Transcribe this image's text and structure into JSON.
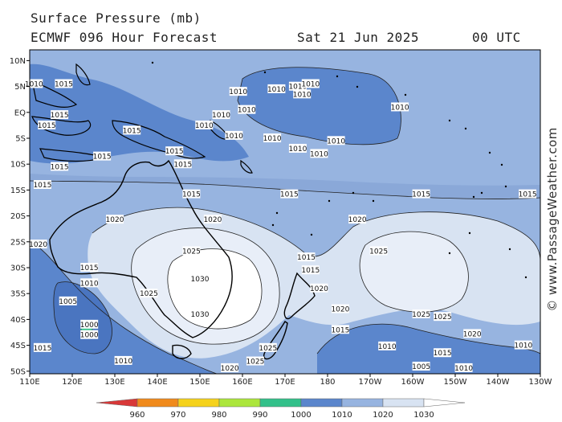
{
  "header": {
    "title": "Surface Pressure (mb)",
    "model": "ECMWF 096 Hour Forecast",
    "date": "Sat 21 Jun 2025",
    "time": "00 UTC"
  },
  "watermark": "© www.PassageWeather.com",
  "axes": {
    "lat_labels": [
      "10N",
      "5N",
      "EQ",
      "5S",
      "10S",
      "15S",
      "20S",
      "25S",
      "30S",
      "35S",
      "40S",
      "45S",
      "50S"
    ],
    "lon_labels": [
      "110E",
      "120E",
      "130E",
      "140E",
      "150E",
      "160E",
      "170E",
      "180",
      "170W",
      "160W",
      "150W",
      "140W",
      "130W"
    ]
  },
  "legend": {
    "values": [
      "960",
      "970",
      "980",
      "990",
      "1000",
      "1010",
      "1020",
      "1030"
    ],
    "colors": [
      "#d83838",
      "#f08a1c",
      "#f5d21c",
      "#ace63c",
      "#33c08a",
      "#5b86cc",
      "#97b4e0",
      "#d8e3f2",
      "#ffffff"
    ]
  },
  "isobar_labels": [
    {
      "text": "1015",
      "lat": -15.3,
      "lon": 148
    },
    {
      "text": "1015",
      "lat": -15.3,
      "lon": 171
    },
    {
      "text": "1015",
      "lat": -15.3,
      "lon": -158
    },
    {
      "text": "1015",
      "lat": -15.3,
      "lon": -133
    },
    {
      "text": "1015",
      "lat": -13.5,
      "lon": 113
    },
    {
      "text": "1020",
      "lat": -20.2,
      "lon": 130
    },
    {
      "text": "1020",
      "lat": -20.2,
      "lon": 153
    },
    {
      "text": "1020",
      "lat": -20.2,
      "lon": -173
    },
    {
      "text": "1020",
      "lat": -25,
      "lon": 112
    },
    {
      "text": "1025",
      "lat": -26.3,
      "lon": 148
    },
    {
      "text": "1025",
      "lat": -26.3,
      "lon": -168
    },
    {
      "text": "1030",
      "lat": -31.7,
      "lon": 150
    },
    {
      "text": "1030",
      "lat": -38.5,
      "lon": 150
    },
    {
      "text": "1025",
      "lat": -34.5,
      "lon": 138
    },
    {
      "text": "1015",
      "lat": -29.5,
      "lon": 124
    },
    {
      "text": "1010",
      "lat": -32.5,
      "lon": 124
    },
    {
      "text": "1005",
      "lat": -36,
      "lon": 119
    },
    {
      "text": "1000",
      "lat": -40.5,
      "lon": 124
    },
    {
      "text": "1000",
      "lat": -42.5,
      "lon": 124
    },
    {
      "text": "1015",
      "lat": -45,
      "lon": 113
    },
    {
      "text": "1010",
      "lat": -47.5,
      "lon": 132
    },
    {
      "text": "1020",
      "lat": -48.9,
      "lon": 157
    },
    {
      "text": "1025",
      "lat": -47.6,
      "lon": 163
    },
    {
      "text": "1025",
      "lat": -45,
      "lon": 166
    },
    {
      "text": "1020",
      "lat": -37.5,
      "lon": -177
    },
    {
      "text": "1015",
      "lat": -41.5,
      "lon": -177
    },
    {
      "text": "1010",
      "lat": -44.7,
      "lon": -166
    },
    {
      "text": "1005",
      "lat": -48.6,
      "lon": -158
    },
    {
      "text": "1010",
      "lat": -48.9,
      "lon": -148
    },
    {
      "text": "1015",
      "lat": -46,
      "lon": -153
    },
    {
      "text": "1020",
      "lat": -42.3,
      "lon": -146
    },
    {
      "text": "1025",
      "lat": -38.5,
      "lon": -158
    },
    {
      "text": "1025",
      "lat": -39,
      "lon": -153
    },
    {
      "text": "1020",
      "lat": -33.5,
      "lon": 178
    },
    {
      "text": "1015",
      "lat": -27.5,
      "lon": 175
    },
    {
      "text": "1015",
      "lat": -30,
      "lon": 176
    },
    {
      "text": "1010",
      "lat": -44.5,
      "lon": -134
    },
    {
      "text": "1010",
      "lat": -4.5,
      "lon": 167
    },
    {
      "text": "1010",
      "lat": -6.5,
      "lon": 173
    },
    {
      "text": "1010",
      "lat": -7.5,
      "lon": 178
    },
    {
      "text": "1010",
      "lat": -5,
      "lon": -178
    },
    {
      "text": "1010",
      "lat": 1.5,
      "lon": -163
    },
    {
      "text": "1010",
      "lat": 1,
      "lon": 161
    },
    {
      "text": "1010",
      "lat": 4.5,
      "lon": 159
    },
    {
      "text": "1010",
      "lat": 5,
      "lon": 168
    },
    {
      "text": "1010",
      "lat": 5.5,
      "lon": 173
    },
    {
      "text": "1010",
      "lat": 4,
      "lon": 174
    },
    {
      "text": "1010",
      "lat": 6,
      "lon": 176
    },
    {
      "text": "1010",
      "lat": 0,
      "lon": 155
    },
    {
      "text": "1010",
      "lat": -2,
      "lon": 151
    },
    {
      "text": "1010",
      "lat": -4,
      "lon": 158
    },
    {
      "text": "1015",
      "lat": -9.5,
      "lon": 146
    },
    {
      "text": "1015",
      "lat": -7,
      "lon": 144
    },
    {
      "text": "1015",
      "lat": -3,
      "lon": 134
    },
    {
      "text": "1015",
      "lat": 0,
      "lon": 117
    },
    {
      "text": "1015",
      "lat": -8,
      "lon": 127
    },
    {
      "text": "1015",
      "lat": -10,
      "lon": 117
    },
    {
      "text": "1015",
      "lat": 6,
      "lon": 118
    },
    {
      "text": "1010",
      "lat": 6,
      "lon": 111
    },
    {
      "text": "1015",
      "lat": -2,
      "lon": 114
    }
  ]
}
